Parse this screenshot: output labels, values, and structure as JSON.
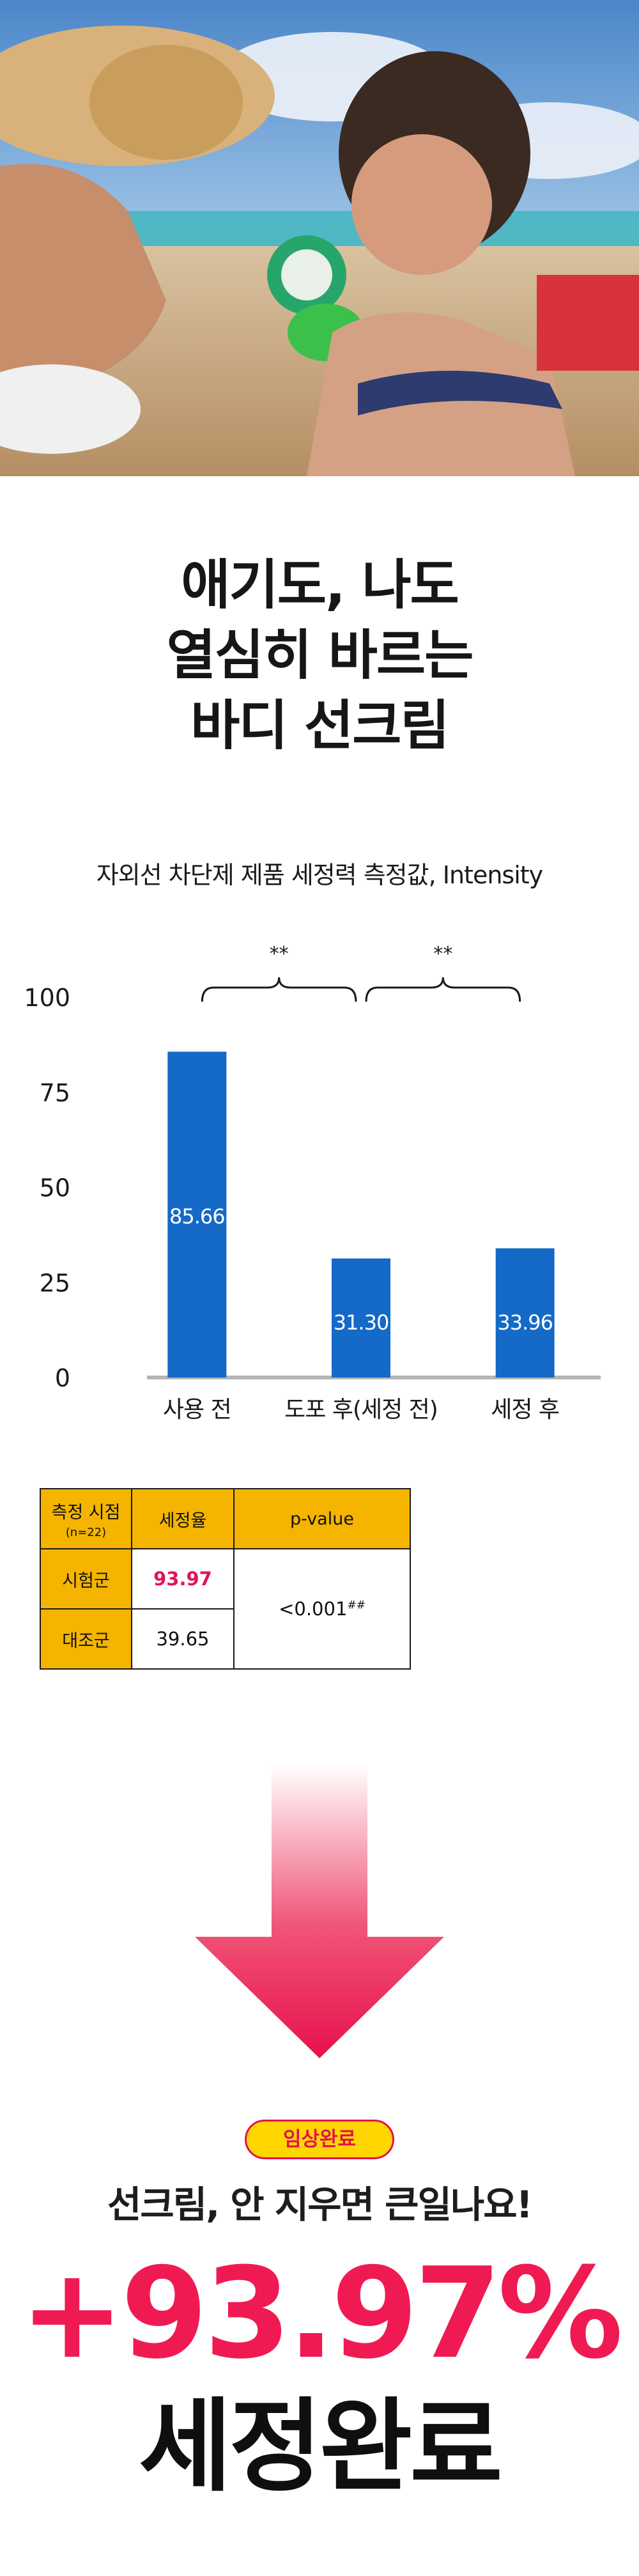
{
  "headline": {
    "lines": [
      "애기도, 나도",
      "열심히 바르는",
      "바디 선크림"
    ]
  },
  "chart_data": {
    "type": "bar",
    "title": "자외선 차단제 제품 세정력 측정값, Intensity",
    "categories": [
      "사용 전",
      "도포 후(세정 전)",
      "세정 후"
    ],
    "values": [
      85.66,
      31.3,
      33.96
    ],
    "value_labels": [
      "85.66",
      "31.30",
      "33.96"
    ],
    "y_ticks": [
      "0",
      "25",
      "50",
      "75",
      "100"
    ],
    "ylim": [
      0,
      100
    ],
    "bar_color": "#1569c7",
    "significance": [
      "**",
      "**"
    ],
    "grid": false
  },
  "table": {
    "headers": [
      "측정 시점",
      "(n=22)",
      "세정율",
      "p-value"
    ],
    "rows": [
      {
        "group": "시험군",
        "rate": "93.97"
      },
      {
        "group": "대조군",
        "rate": "39.65"
      }
    ],
    "pvalue": "<0.001",
    "pvalue_mark": "##",
    "header_color": "#f4b400",
    "highlight_color": "#e01554"
  },
  "badge": "임상완료",
  "bottom_sub": "선크림, 안 지우면 큰일나요!",
  "big_percent": "+93.97%",
  "big_word": "세정완료"
}
